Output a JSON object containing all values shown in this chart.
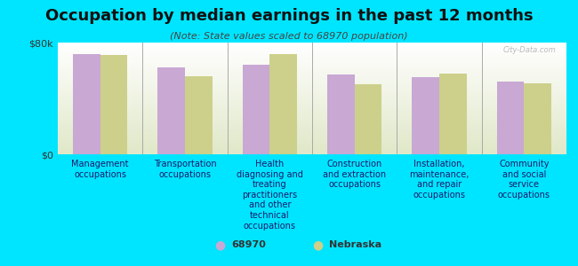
{
  "title": "Occupation by median earnings in the past 12 months",
  "subtitle": "(Note: State values scaled to 68970 population)",
  "background_color": "#00e5ff",
  "plot_bg_color_top": "#ffffff",
  "plot_bg_color_bottom": "#e8f0d8",
  "bar_color_68970": "#c9a8d4",
  "bar_color_nebraska": "#cdd08a",
  "categories": [
    "Management\noccupations",
    "Transportation\noccupations",
    "Health\ndiagnosing and\ntreating\npractitioners\nand other\ntechnical\noccupations",
    "Construction\nand extraction\noccupations",
    "Installation,\nmaintenance,\nand repair\noccupations",
    "Community\nand social\nservice\noccupations"
  ],
  "values_68970": [
    72000,
    62000,
    64000,
    57000,
    55000,
    52000
  ],
  "values_nebraska": [
    71000,
    56000,
    72000,
    50000,
    58000,
    51000
  ],
  "ylim": [
    0,
    80000
  ],
  "yticks": [
    0,
    80000
  ],
  "ytick_labels": [
    "$0",
    "$80k"
  ],
  "legend_68970": "68970",
  "legend_nebraska": "Nebraska",
  "watermark": "City-Data.com",
  "title_fontsize": 13,
  "subtitle_fontsize": 8,
  "label_fontsize": 7,
  "ytick_fontsize": 8
}
